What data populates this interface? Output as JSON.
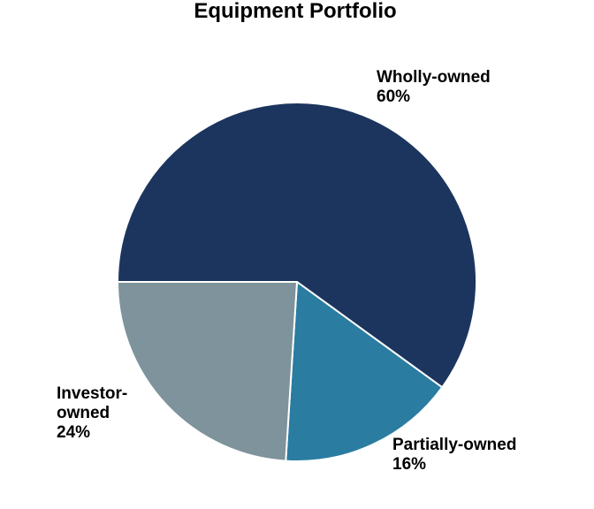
{
  "chart_data": {
    "type": "pie",
    "title": "Equipment Portfolio",
    "categories": [
      "Wholly-owned",
      "Partially-owned",
      "Investor-owned"
    ],
    "values": [
      60,
      16,
      24
    ],
    "value_labels": [
      "60%",
      "16%",
      "24%"
    ],
    "label_lines": [
      [
        "Wholly-owned",
        "60%"
      ],
      [
        "Partially-owned",
        "16%"
      ],
      [
        "Investor-",
        "owned",
        "24%"
      ]
    ],
    "colors": [
      "#1c355e",
      "#2a7ca1",
      "#7e939b"
    ],
    "start_angle_deg": 180,
    "direction": "clockwise",
    "legend": "none"
  }
}
